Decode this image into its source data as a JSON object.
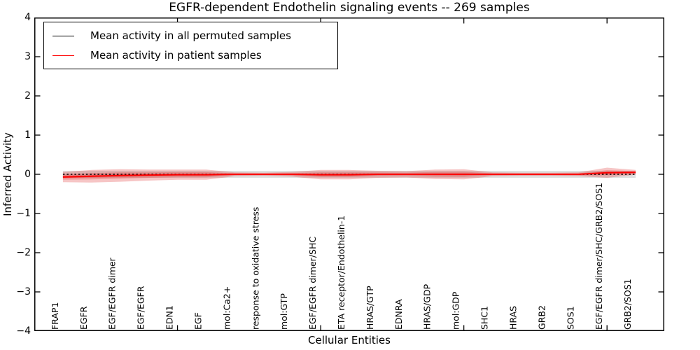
{
  "chart_data": {
    "type": "line-with-bands",
    "title": "EGFR-dependent Endothelin signaling events -- 269 samples",
    "xlabel": "Cellular Entities",
    "ylabel": "Inferred Activity",
    "legend_position": "upper left",
    "categories": [
      "FRAP1",
      "EGFR",
      "EGF/EGFR dimer",
      "EGF/EGFR",
      "EDN1",
      "EGF",
      "mol:Ca2+",
      "response to oxidative stress",
      "mol:GTP",
      "EGF/EGFR dimer/SHC",
      "ETA receptor/Endothelin-1",
      "HRAS/GTP",
      "EDNRA",
      "HRAS/GDP",
      "mol:GDP",
      "SHC1",
      "HRAS",
      "GRB2",
      "SOS1",
      "EGF/EGFR dimer/SHC/GRB2/SOS1",
      "GRB2/SOS1"
    ],
    "series": [
      {
        "name": "Mean activity in all permuted samples",
        "color": "#000000",
        "line_style": "dashed",
        "values": [
          0,
          0,
          0,
          0,
          0,
          0,
          0,
          0,
          0,
          0,
          0,
          0,
          0,
          0,
          0,
          0,
          0,
          0,
          0,
          0,
          0
        ]
      },
      {
        "name": "Mean activity in patient samples",
        "color": "#ff0000",
        "line_style": "solid",
        "values": [
          -0.07,
          -0.05,
          -0.03,
          -0.02,
          -0.01,
          -0.01,
          0,
          0,
          0,
          -0.01,
          -0.01,
          0,
          0,
          0,
          0,
          0,
          0,
          0,
          0,
          0.04,
          0.05
        ]
      }
    ],
    "bands": [
      {
        "name": "permuted-samples-envelope",
        "series": 0,
        "color": "#999999",
        "opacity": 0.3,
        "half_width": 0.09,
        "layers": [
          1
        ]
      },
      {
        "name": "patient-samples-envelope",
        "series": 1,
        "color": "#e03030",
        "opacity": 0.28,
        "half_width": [
          0.13,
          0.16,
          0.16,
          0.14,
          0.13,
          0.13,
          0.05,
          0.04,
          0.06,
          0.12,
          0.12,
          0.09,
          0.08,
          0.12,
          0.13,
          0.05,
          0.04,
          0.04,
          0.05,
          0.13,
          0.06
        ],
        "layers": [
          1,
          0.5,
          0.22
        ]
      }
    ],
    "axis": {
      "xlim": [
        0,
        22
      ],
      "ylim": [
        -4,
        4
      ],
      "yticks": [
        4,
        3,
        2,
        1,
        0,
        -1,
        -2,
        -3,
        -4
      ],
      "xtick_marks": [
        5,
        10,
        15,
        20
      ],
      "grid": false
    }
  }
}
